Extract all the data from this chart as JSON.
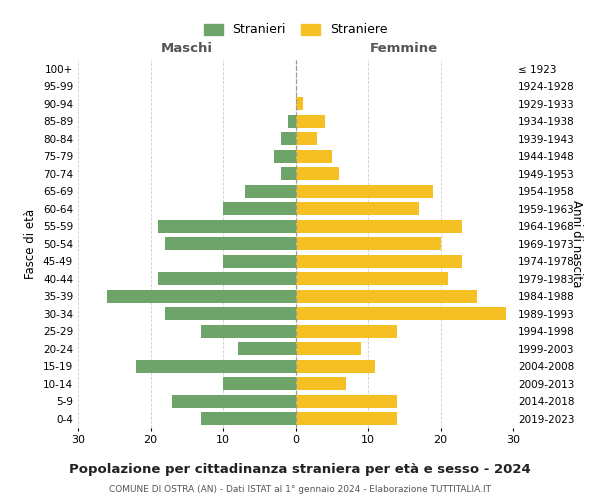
{
  "age_groups": [
    "100+",
    "95-99",
    "90-94",
    "85-89",
    "80-84",
    "75-79",
    "70-74",
    "65-69",
    "60-64",
    "55-59",
    "50-54",
    "45-49",
    "40-44",
    "35-39",
    "30-34",
    "25-29",
    "20-24",
    "15-19",
    "10-14",
    "5-9",
    "0-4"
  ],
  "birth_years": [
    "≤ 1923",
    "1924-1928",
    "1929-1933",
    "1934-1938",
    "1939-1943",
    "1944-1948",
    "1949-1953",
    "1954-1958",
    "1959-1963",
    "1964-1968",
    "1969-1973",
    "1974-1978",
    "1979-1983",
    "1984-1988",
    "1989-1993",
    "1994-1998",
    "1999-2003",
    "2004-2008",
    "2009-2013",
    "2014-2018",
    "2019-2023"
  ],
  "maschi": [
    0,
    0,
    0,
    1,
    2,
    3,
    2,
    7,
    10,
    19,
    18,
    10,
    19,
    26,
    18,
    13,
    8,
    22,
    10,
    17,
    13
  ],
  "femmine": [
    0,
    0,
    1,
    4,
    3,
    5,
    6,
    19,
    17,
    23,
    20,
    23,
    21,
    25,
    29,
    14,
    9,
    11,
    7,
    14,
    14
  ],
  "color_maschi": "#6ea469",
  "color_femmine": "#f5c024",
  "title": "Popolazione per cittadinanza straniera per età e sesso - 2024",
  "subtitle": "COMUNE DI OSTRA (AN) - Dati ISTAT al 1° gennaio 2024 - Elaborazione TUTTITALIA.IT",
  "xlabel_maschi": "Maschi",
  "xlabel_femmine": "Femmine",
  "ylabel_left": "Fasce di età",
  "ylabel_right": "Anni di nascita",
  "legend_maschi": "Stranieri",
  "legend_femmine": "Straniere",
  "xlim": 30,
  "background_color": "#ffffff",
  "grid_color": "#cccccc"
}
